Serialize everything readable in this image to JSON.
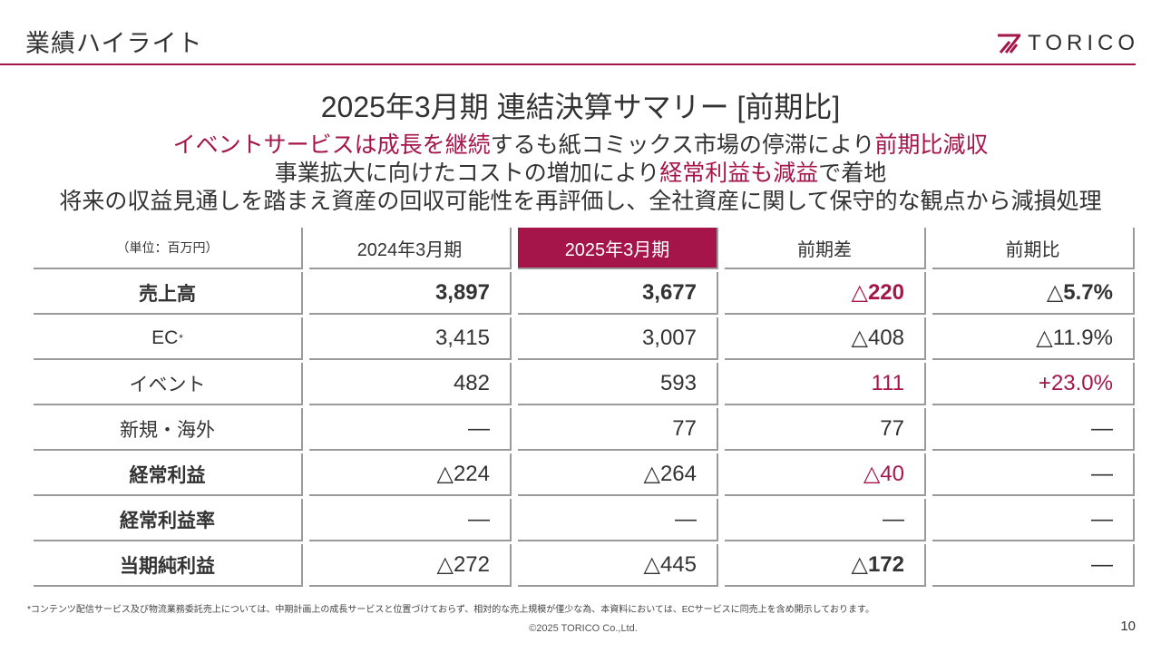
{
  "slide": {
    "title": "業績ハイライト",
    "page_number": "10",
    "copyright": "©2025 TORICO Co.,Ltd."
  },
  "logo": {
    "icon": "torico-logo-icon",
    "text": "TORICO"
  },
  "summary": {
    "title": "2025年3月期 連結決算サマリー [前期比]",
    "lines": [
      {
        "segments": [
          {
            "text": "イベントサービスは成長を継続",
            "accent": true
          },
          {
            "text": "するも紙コミックス市場の停滞により"
          },
          {
            "text": "前期比減収",
            "accent": true
          }
        ]
      },
      {
        "segments": [
          {
            "text": "事業拡大に向けたコストの増加により"
          },
          {
            "text": "経常利益も減益",
            "accent": true
          },
          {
            "text": "で着地"
          }
        ]
      },
      {
        "segments": [
          {
            "text": "将来の収益見通しを踏まえ資産の回収可能性を再評価し、全社資産に関して保守的な観点から減損処理"
          }
        ]
      }
    ]
  },
  "table": {
    "unit_label": "（単位：百万円）",
    "columns": [
      {
        "text": "2024年3月期"
      },
      {
        "text": "2025年3月期",
        "highlight": true
      },
      {
        "text": "前期差"
      },
      {
        "text": "前期比"
      }
    ],
    "rows": [
      {
        "label": {
          "text": "売上高",
          "bold": true
        },
        "cells": [
          {
            "text": "3,897",
            "bold": true
          },
          {
            "text": "3,677",
            "bold": true
          },
          {
            "text": "△220",
            "bold": true,
            "accent": true
          },
          {
            "text": "△5.7%",
            "bold": true
          }
        ]
      },
      {
        "label": {
          "text": "EC",
          "mark": "*"
        },
        "cells": [
          {
            "text": "3,415"
          },
          {
            "text": "3,007"
          },
          {
            "text": "△408"
          },
          {
            "text": "△11.9%"
          }
        ]
      },
      {
        "label": {
          "text": "イベント"
        },
        "cells": [
          {
            "text": "482"
          },
          {
            "text": "593"
          },
          {
            "text": "111",
            "accent": true
          },
          {
            "text": "+23.0%",
            "accent": true
          }
        ]
      },
      {
        "label": {
          "text": "新規・海外"
        },
        "cells": [
          {
            "text": "—"
          },
          {
            "text": "77"
          },
          {
            "text": "77"
          },
          {
            "text": "—"
          }
        ]
      },
      {
        "label": {
          "text": "経常利益",
          "bold": true
        },
        "cells": [
          {
            "text": "△224"
          },
          {
            "text": "△264"
          },
          {
            "text": "△40",
            "accent": true
          },
          {
            "text": "—"
          }
        ]
      },
      {
        "label": {
          "text": "経常利益率",
          "bold": true
        },
        "cells": [
          {
            "text": "—"
          },
          {
            "text": "—"
          },
          {
            "text": "—"
          },
          {
            "text": "—"
          }
        ]
      },
      {
        "label": {
          "text": "当期純利益",
          "bold": true
        },
        "cells": [
          {
            "text": "△272"
          },
          {
            "text": "△445"
          },
          {
            "text": "△172",
            "bold": true
          },
          {
            "text": "—"
          }
        ]
      }
    ]
  },
  "footnote": "*コンテンツ配信サービス及び物流業務委託売上については、中期計画上の成長サービスと位置づけておらず、相対的な売上規模が僅少な為、本資料においては、ECサービスに同売上を含め開示しております。",
  "colors": {
    "accent": "#a5154a",
    "text": "#333333",
    "rule": "#9a9a9a"
  }
}
